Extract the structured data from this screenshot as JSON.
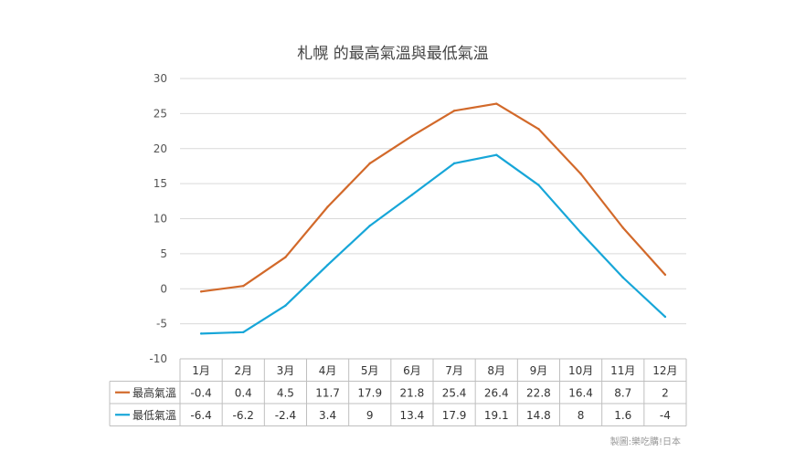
{
  "chart_data": {
    "type": "line",
    "title": "札幌 的最高氣溫與最低氣溫",
    "categories": [
      "1月",
      "2月",
      "3月",
      "4月",
      "5月",
      "6月",
      "7月",
      "8月",
      "9月",
      "10月",
      "11月",
      "12月"
    ],
    "series": [
      {
        "name": "最高氣溫",
        "color": "#d2692a",
        "values": [
          -0.4,
          0.4,
          4.5,
          11.7,
          17.9,
          21.8,
          25.4,
          26.4,
          22.8,
          16.4,
          8.7,
          2
        ]
      },
      {
        "name": "最低氣溫",
        "color": "#17a6d8",
        "values": [
          -6.4,
          -6.2,
          -2.4,
          3.4,
          9,
          13.4,
          17.9,
          19.1,
          14.8,
          8,
          1.6,
          -4
        ]
      }
    ],
    "yticks": [
      "-10",
      "-5",
      "0",
      "5",
      "10",
      "15",
      "20",
      "25",
      "30"
    ],
    "ylim": [
      -10,
      30
    ],
    "table": [
      {
        "label": "最高氣溫",
        "cells": [
          "-0.4",
          "0.4",
          "4.5",
          "11.7",
          "17.9",
          "21.8",
          "25.4",
          "26.4",
          "22.8",
          "16.4",
          "8.7",
          "2"
        ]
      },
      {
        "label": "最低氣溫",
        "cells": [
          "-6.4",
          "-6.2",
          "-2.4",
          "3.4",
          "9",
          "13.4",
          "17.9",
          "19.1",
          "14.8",
          "8",
          "1.6",
          "-4"
        ]
      }
    ],
    "grid": true,
    "legend": "data-table"
  },
  "credit": "製圖:樂吃購!日本"
}
